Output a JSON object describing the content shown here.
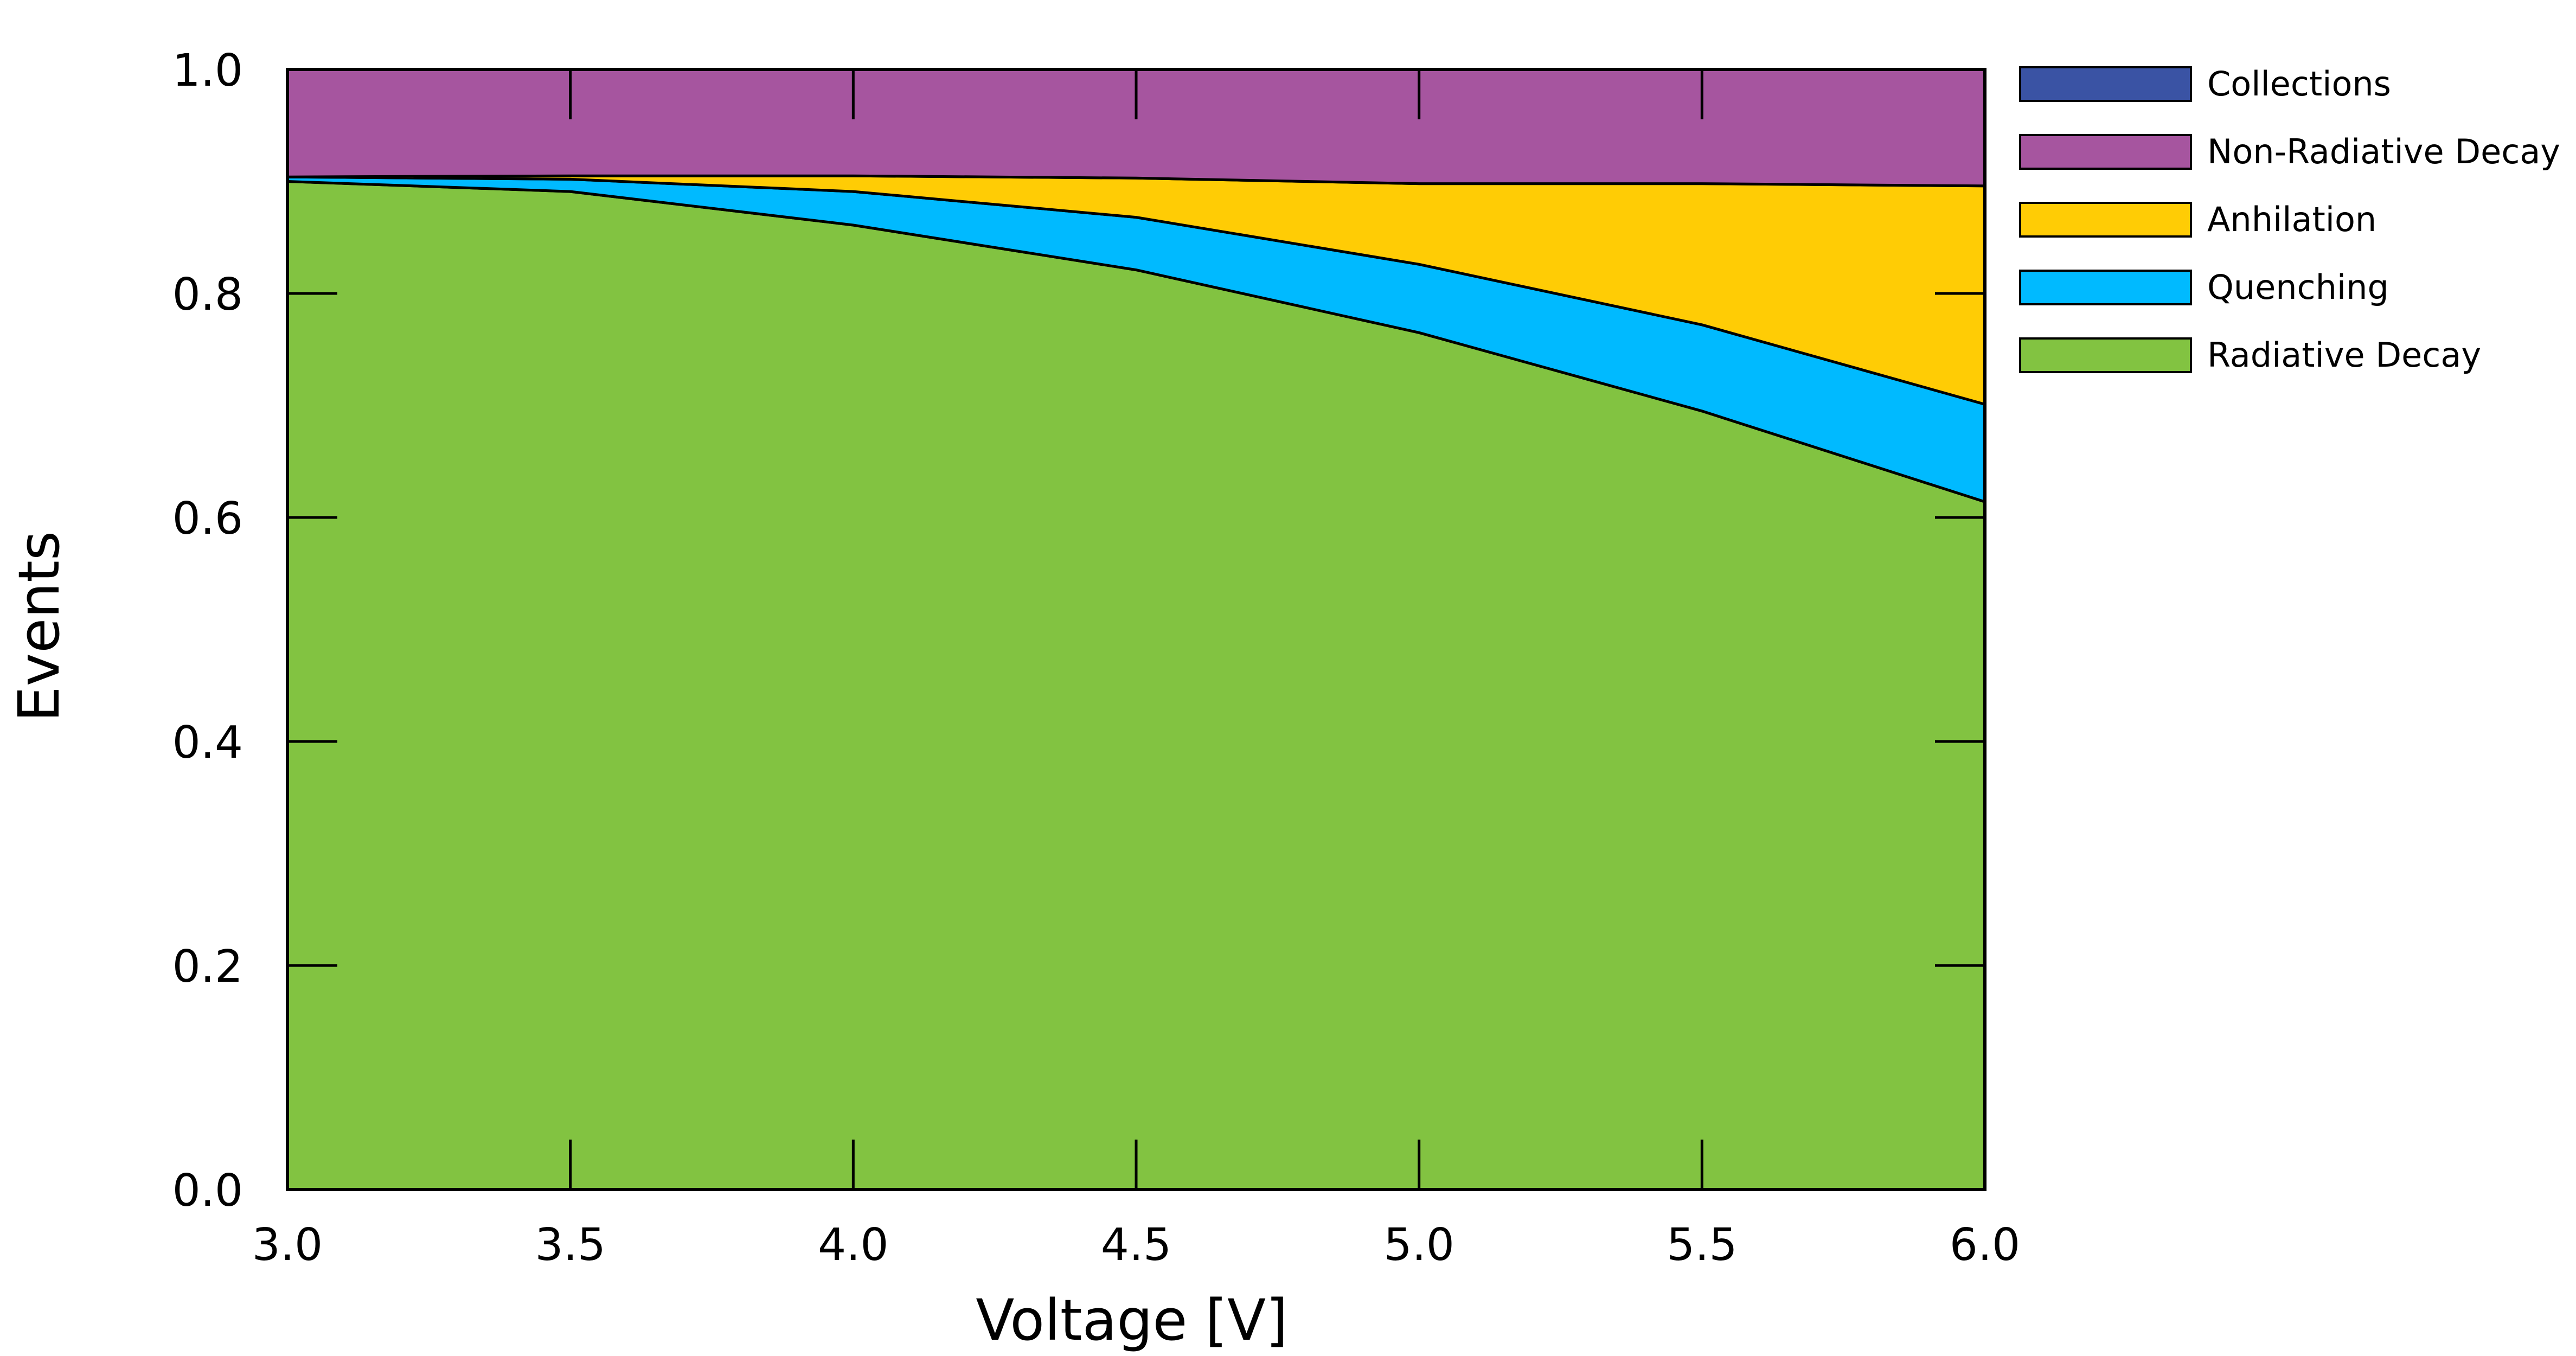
{
  "chart_data": {
    "type": "area",
    "stacked": true,
    "xlabel": "Voltage [V]",
    "ylabel": "Events",
    "xlim": [
      3.0,
      6.0
    ],
    "ylim": [
      0.0,
      1.0
    ],
    "x": [
      3.0,
      3.5,
      4.0,
      4.5,
      5.0,
      5.5,
      6.0
    ],
    "x_ticks": [
      "3.0",
      "3.5",
      "4.0",
      "4.5",
      "5.0",
      "5.5",
      "6.0"
    ],
    "y_ticks": [
      "0.0",
      "0.2",
      "0.4",
      "0.6",
      "0.8",
      "1.0"
    ],
    "grid": false,
    "legend_position": "right",
    "series": [
      {
        "name": "Radiative Decay",
        "color": "#82c341",
        "values": [
          0.9,
          0.891,
          0.861,
          0.821,
          0.765,
          0.695,
          0.614
        ]
      },
      {
        "name": "Quenching",
        "color": "#00baff",
        "values": [
          0.004,
          0.011,
          0.03,
          0.047,
          0.061,
          0.077,
          0.087
        ]
      },
      {
        "name": "Anhilation",
        "color": "#ffcc05",
        "values": [
          0.0,
          0.003,
          0.014,
          0.035,
          0.072,
          0.126,
          0.195
        ]
      },
      {
        "name": "Non-Radiative Decay",
        "color": "#a6559f",
        "values": [
          0.096,
          0.095,
          0.095,
          0.097,
          0.102,
          0.102,
          0.104
        ]
      },
      {
        "name": "Collections",
        "color": "#3a53a4",
        "values": [
          0.0,
          0.0,
          0.0,
          0.0,
          0.0,
          0.0,
          0.0
        ]
      }
    ],
    "legend_order": [
      "Collections",
      "Non-Radiative Decay",
      "Anhilation",
      "Quenching",
      "Radiative Decay"
    ]
  }
}
